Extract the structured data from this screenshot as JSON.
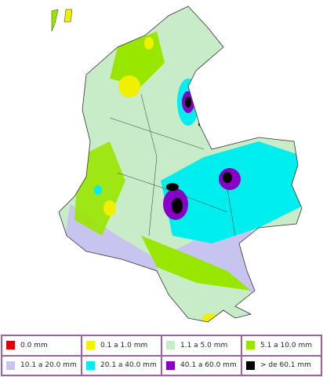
{
  "legend": [
    {
      "label": "0.0 mm",
      "color": "#e00000"
    },
    {
      "label": "0.1 a 1.0 mm",
      "color": "#f0f000"
    },
    {
      "label": "1.1 a 5.0 mm",
      "color": "#c8ecc8"
    },
    {
      "label": "5.1 a 10.0 mm",
      "color": "#99e600"
    },
    {
      "label": "10.1 a 20.0 mm",
      "color": "#c8c4f0"
    },
    {
      "label": "20.1 a 40.0 mm",
      "color": "#00eeee"
    },
    {
      "label": "40.1 a 60.0 mm",
      "color": "#8800c8"
    },
    {
      "label": "> de 60.1 mm",
      "color": "#000000"
    }
  ]
}
